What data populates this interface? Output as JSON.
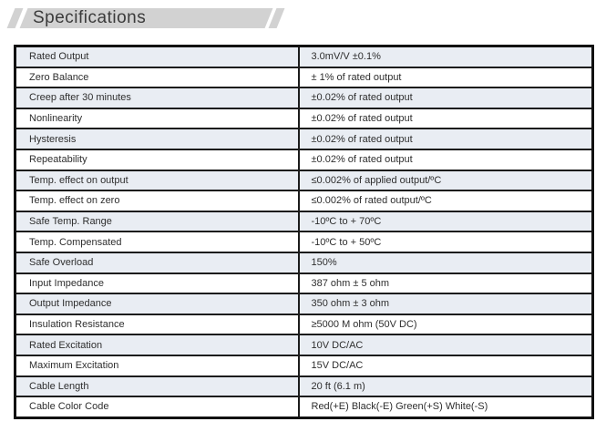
{
  "title": "Specifications",
  "table": {
    "rows": [
      {
        "label": "Rated Output",
        "value": "3.0mV/V ±0.1%"
      },
      {
        "label": "Zero Balance",
        "value": "± 1% of rated output"
      },
      {
        "label": "Creep after 30 minutes",
        "value": "±0.02% of rated output"
      },
      {
        "label": "Nonlinearity",
        "value": "±0.02% of rated output"
      },
      {
        "label": "Hysteresis",
        "value": "±0.02% of rated output"
      },
      {
        "label": "Repeatability",
        "value": "±0.02% of rated output"
      },
      {
        "label": "Temp. effect on output",
        "value": "≤0.002% of applied output/ºC"
      },
      {
        "label": "Temp. effect on zero",
        "value": "≤0.002% of rated output/ºC"
      },
      {
        "label": "Safe Temp. Range",
        "value": "-10ºC to + 70ºC"
      },
      {
        "label": "Temp. Compensated",
        "value": "-10ºC to + 50ºC"
      },
      {
        "label": "Safe Overload",
        "value": "150%"
      },
      {
        "label": "Input Impedance",
        "value": "387 ohm ± 5 ohm"
      },
      {
        "label": "Output Impedance",
        "value": "350 ohm ± 3 ohm"
      },
      {
        "label": "Insulation Resistance",
        "value": "≥5000 M ohm  (50V DC)"
      },
      {
        "label": "Rated Excitation",
        "value": "10V DC/AC"
      },
      {
        "label": "Maximum Excitation",
        "value": "15V DC/AC"
      },
      {
        "label": "Cable Length",
        "value": "20 ft (6.1 m)"
      },
      {
        "label": "Cable Color Code",
        "value": "Red(+E) Black(-E) Green(+S) White(-S)"
      }
    ]
  },
  "colors": {
    "row_shade": "#e9edf3",
    "banner_fill": "#d2d2d2",
    "border": "#1c1c1c",
    "text": "#2e2e2e"
  }
}
